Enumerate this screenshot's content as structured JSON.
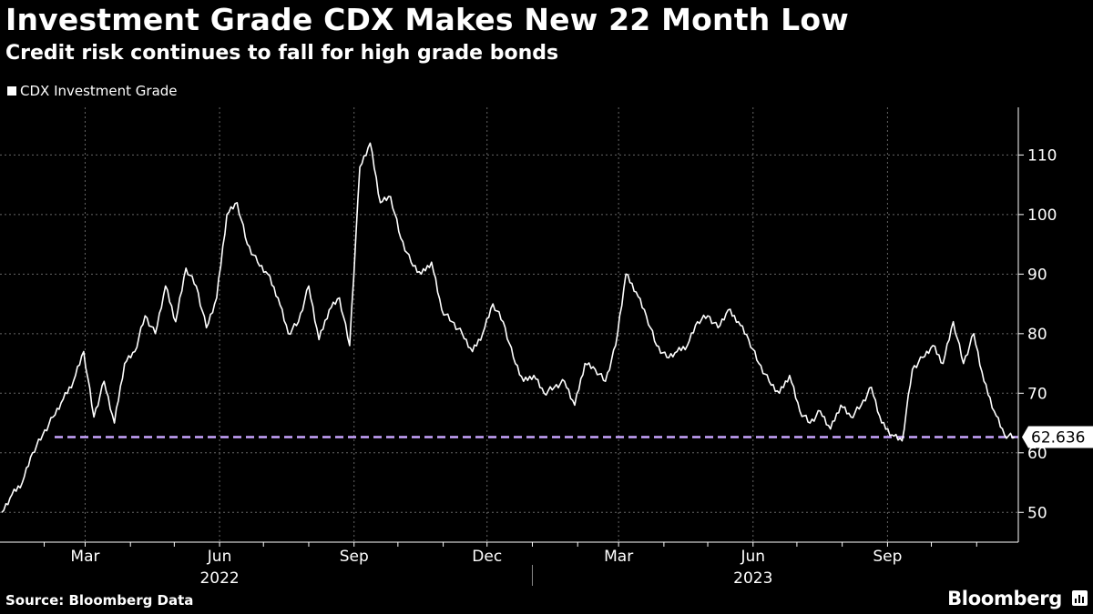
{
  "header": {
    "title": "Investment Grade CDX Makes New 22 Month Low",
    "subtitle": "Credit risk continues to fall for high grade bonds"
  },
  "legend": {
    "label": "CDX Investment Grade"
  },
  "footer": {
    "source": "Source: Bloomberg Data",
    "brand": "Bloomberg"
  },
  "colors": {
    "background": "#000000",
    "series": "#ffffff",
    "reference": "#c9a6ff",
    "grid": "#666666"
  },
  "chart_data": {
    "type": "line",
    "title": "Investment Grade CDX Makes New 22 Month Low",
    "subtitle": "Credit risk continues to fall for high grade bonds",
    "xlabel": "",
    "ylabel": "",
    "ylim": [
      45,
      118
    ],
    "yticks": [
      50,
      60,
      70,
      80,
      90,
      100,
      110
    ],
    "xlim": [
      "2022-01-03",
      "2023-11-27"
    ],
    "xticks": [
      {
        "date": "2022-03-01",
        "label": "Mar"
      },
      {
        "date": "2022-06-01",
        "label": "Jun"
      },
      {
        "date": "2022-09-01",
        "label": "Sep"
      },
      {
        "date": "2022-12-01",
        "label": "Dec"
      },
      {
        "date": "2023-03-01",
        "label": "Mar"
      },
      {
        "date": "2023-06-01",
        "label": "Jun"
      },
      {
        "date": "2023-09-01",
        "label": "Sep"
      }
    ],
    "year_labels": [
      {
        "date": "2022-06-01",
        "label": "2022"
      },
      {
        "date": "2023-06-01",
        "label": "2023"
      }
    ],
    "grid": true,
    "legend_position": "top-left",
    "reference_line": {
      "value": 62.636,
      "label": "62.636"
    },
    "series": [
      {
        "name": "CDX Investment Grade",
        "x": [
          "2022-01-03",
          "2022-01-10",
          "2022-01-17",
          "2022-01-24",
          "2022-01-31",
          "2022-02-07",
          "2022-02-14",
          "2022-02-21",
          "2022-02-28",
          "2022-03-07",
          "2022-03-14",
          "2022-03-21",
          "2022-03-28",
          "2022-04-04",
          "2022-04-11",
          "2022-04-18",
          "2022-04-25",
          "2022-05-02",
          "2022-05-09",
          "2022-05-16",
          "2022-05-23",
          "2022-05-30",
          "2022-06-06",
          "2022-06-13",
          "2022-06-20",
          "2022-06-27",
          "2022-07-04",
          "2022-07-11",
          "2022-07-18",
          "2022-07-25",
          "2022-08-01",
          "2022-08-08",
          "2022-08-15",
          "2022-08-22",
          "2022-08-29",
          "2022-09-05",
          "2022-09-12",
          "2022-09-19",
          "2022-09-26",
          "2022-10-03",
          "2022-10-10",
          "2022-10-17",
          "2022-10-24",
          "2022-10-31",
          "2022-11-07",
          "2022-11-14",
          "2022-11-21",
          "2022-11-28",
          "2022-12-05",
          "2022-12-12",
          "2022-12-19",
          "2022-12-26",
          "2023-01-02",
          "2023-01-09",
          "2023-01-16",
          "2023-01-23",
          "2023-01-30",
          "2023-02-06",
          "2023-02-13",
          "2023-02-20",
          "2023-02-27",
          "2023-03-06",
          "2023-03-13",
          "2023-03-20",
          "2023-03-27",
          "2023-04-03",
          "2023-04-10",
          "2023-04-17",
          "2023-04-24",
          "2023-05-01",
          "2023-05-08",
          "2023-05-15",
          "2023-05-22",
          "2023-05-29",
          "2023-06-05",
          "2023-06-12",
          "2023-06-19",
          "2023-06-26",
          "2023-07-03",
          "2023-07-10",
          "2023-07-17",
          "2023-07-24",
          "2023-07-31",
          "2023-08-07",
          "2023-08-14",
          "2023-08-21",
          "2023-08-28",
          "2023-09-04",
          "2023-09-11",
          "2023-09-18",
          "2023-09-25",
          "2023-10-02",
          "2023-10-09",
          "2023-10-16",
          "2023-10-23",
          "2023-10-30",
          "2023-11-06",
          "2023-11-13",
          "2023-11-20",
          "2023-11-27"
        ],
        "values": [
          50,
          53,
          55,
          60,
          63,
          66,
          69,
          72,
          77,
          66,
          72,
          65,
          75,
          77,
          83,
          80,
          88,
          82,
          91,
          88,
          81,
          86,
          100,
          102,
          95,
          92,
          90,
          86,
          80,
          82,
          88,
          79,
          84,
          86,
          78,
          108,
          112,
          102,
          103,
          96,
          92,
          90,
          92,
          84,
          82,
          80,
          77,
          80,
          85,
          82,
          76,
          72,
          73,
          70,
          71,
          72,
          68,
          75,
          74,
          72,
          78,
          90,
          87,
          83,
          78,
          76,
          77,
          78,
          82,
          83,
          81,
          84,
          82,
          79,
          75,
          72,
          70,
          73,
          67,
          65,
          67,
          64,
          68,
          66,
          68,
          71,
          65,
          63,
          62,
          74,
          76,
          78,
          75,
          82,
          75,
          80,
          72,
          67,
          63,
          62.636
        ]
      }
    ]
  }
}
